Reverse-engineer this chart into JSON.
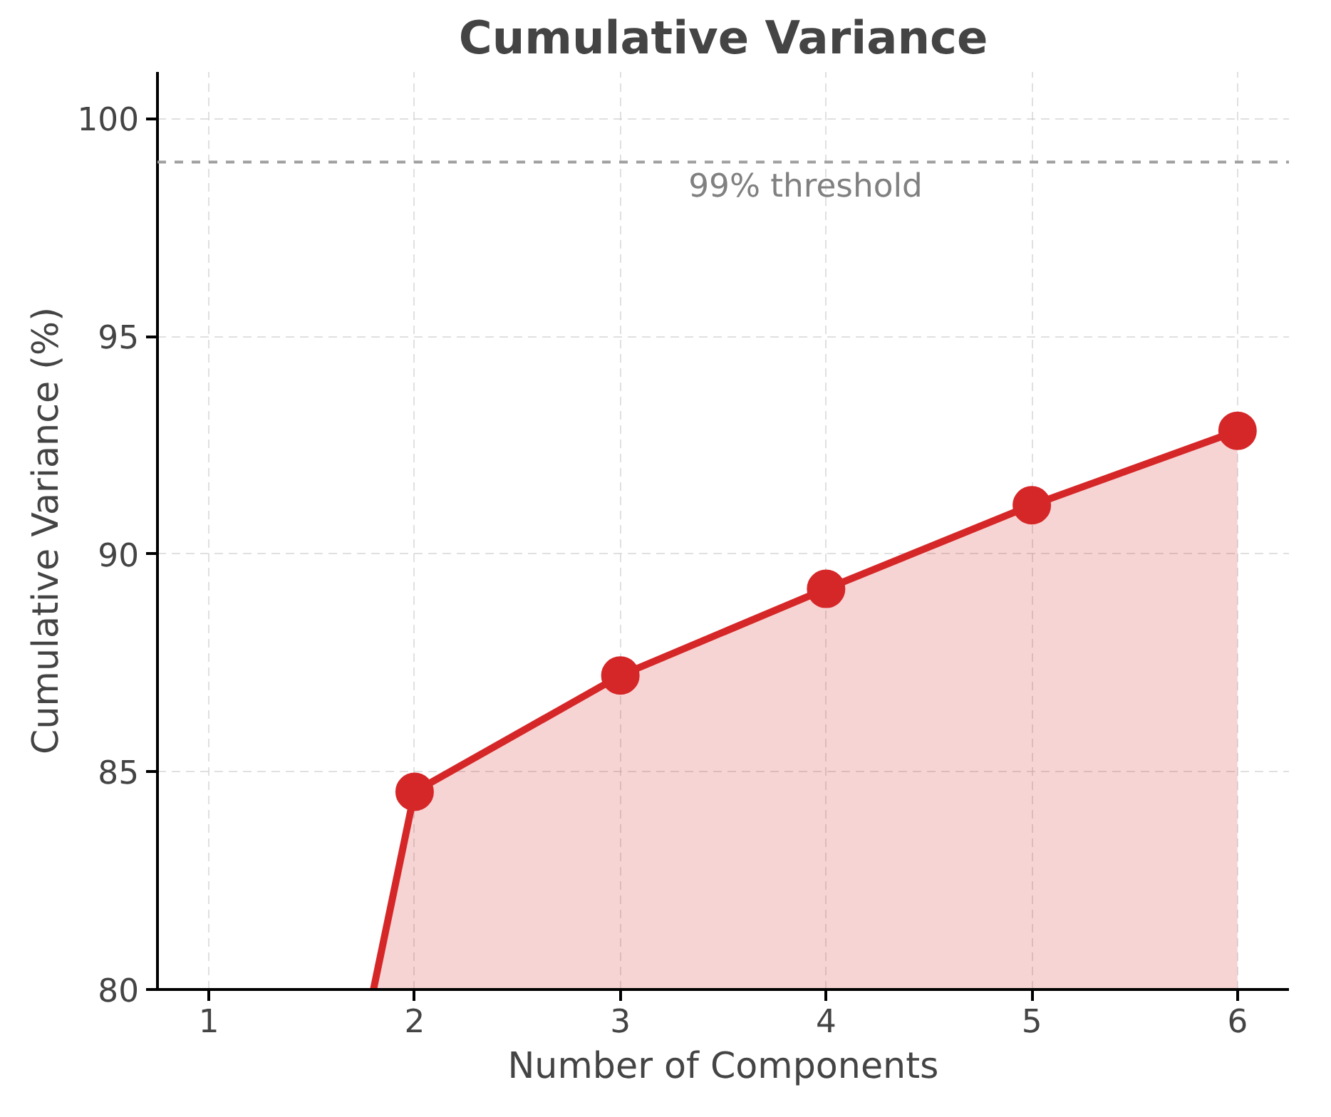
{
  "chart_data": {
    "type": "area",
    "title": "Cumulative Variance",
    "xlabel": "Number of Components",
    "ylabel": "Cumulative Variance (%)",
    "x": [
      2,
      3,
      4,
      5,
      6
    ],
    "series": [
      {
        "x": [
          1.8,
          2,
          3,
          4,
          5,
          6
        ],
        "color": "#d62728",
        "values": [
          80,
          84.54,
          87.21,
          89.2,
          91.12,
          92.83
        ]
      },
      {
        "type": "scatter",
        "marker": "circle",
        "color": "#d62728",
        "values": [
          84.54,
          87.21,
          89.2,
          91.12,
          92.83
        ]
      }
    ],
    "xlim": [
      0.75,
      6.25
    ],
    "ylim": [
      80,
      101.07
    ],
    "xticks": [
      1,
      2,
      3,
      4,
      5,
      6
    ],
    "yticks": [
      80,
      85,
      90,
      95,
      100
    ],
    "ref_lines": [
      {
        "axis": "y",
        "value": 99,
        "label": "99% threshold",
        "color": "#a0a0a0",
        "line_style": "dashed"
      }
    ],
    "grid": true,
    "line_style": "solid"
  }
}
